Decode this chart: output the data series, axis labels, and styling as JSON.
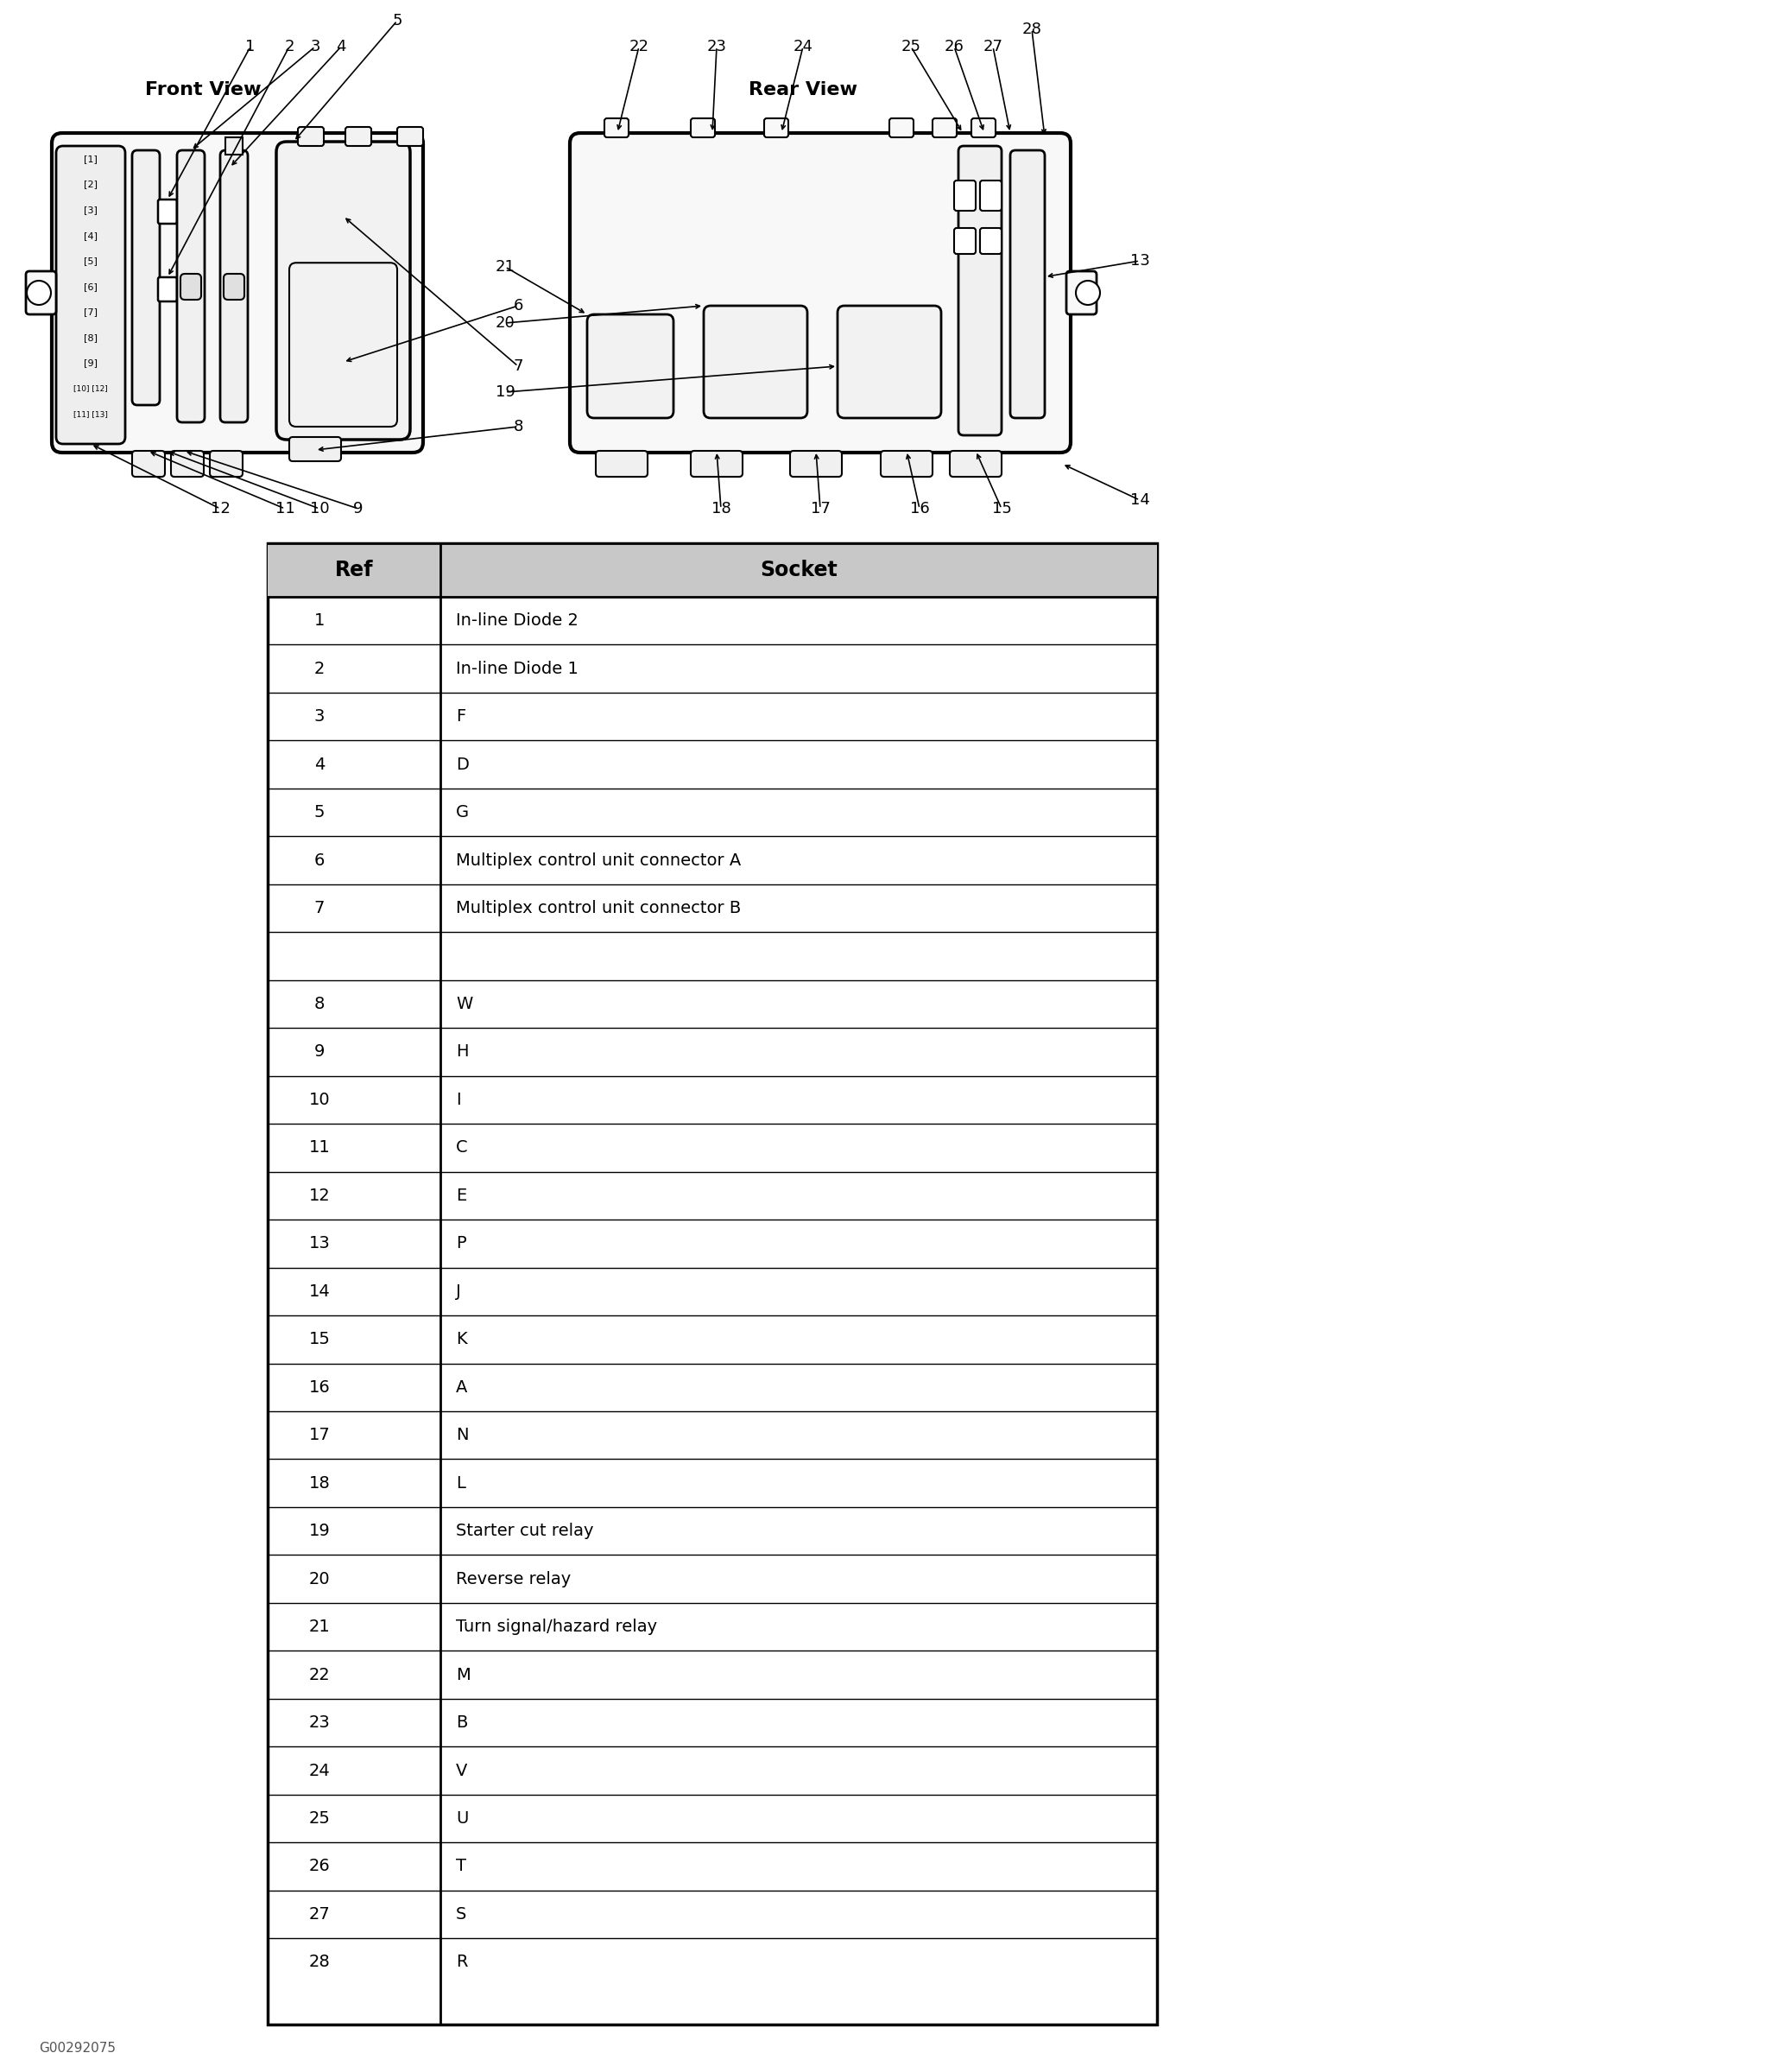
{
  "front_view_label": "Front View",
  "rear_view_label": "Rear View",
  "watermark": "G00292075",
  "table_data": [
    [
      "1",
      "In-line Diode 2"
    ],
    [
      "2",
      "In-line Diode 1"
    ],
    [
      "3",
      "F"
    ],
    [
      "4",
      "D"
    ],
    [
      "5",
      "G"
    ],
    [
      "6",
      "Multiplex control unit connector A"
    ],
    [
      "7",
      "Multiplex control unit connector B"
    ],
    [
      "",
      ""
    ],
    [
      "8",
      "W"
    ],
    [
      "9",
      "H"
    ],
    [
      "10",
      "I"
    ],
    [
      "11",
      "C"
    ],
    [
      "12",
      "E"
    ],
    [
      "13",
      "P"
    ],
    [
      "14",
      "J"
    ],
    [
      "15",
      "K"
    ],
    [
      "16",
      "A"
    ],
    [
      "17",
      "N"
    ],
    [
      "18",
      "L"
    ],
    [
      "19",
      "Starter cut relay"
    ],
    [
      "20",
      "Reverse relay"
    ],
    [
      "21",
      "Turn signal/hazard relay"
    ],
    [
      "22",
      "M"
    ],
    [
      "23",
      "B"
    ],
    [
      "24",
      "V"
    ],
    [
      "25",
      "U"
    ],
    [
      "26",
      "T"
    ],
    [
      "27",
      "S"
    ],
    [
      "28",
      "R"
    ]
  ],
  "bg_color": "#ffffff"
}
